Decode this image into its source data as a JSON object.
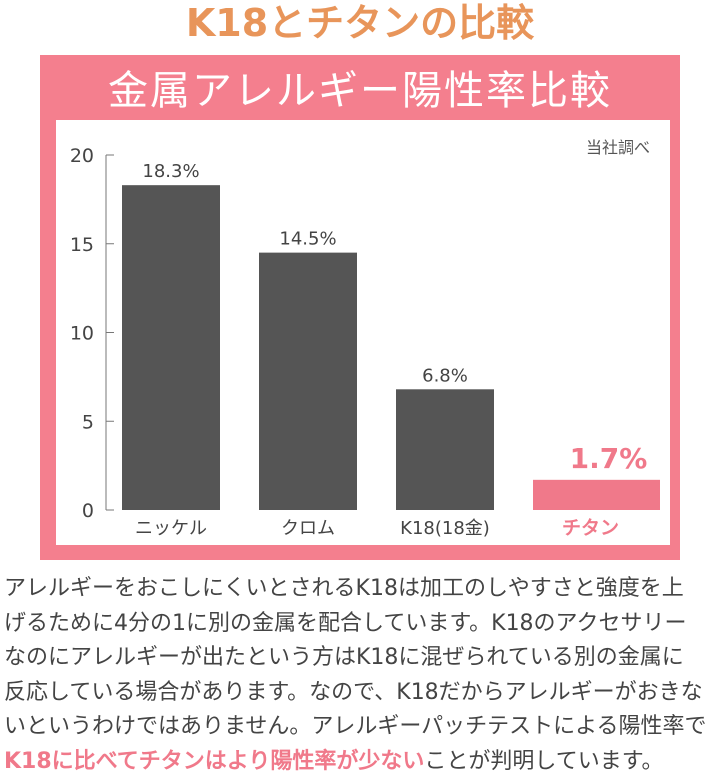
{
  "header": {
    "title": "K18とチタンの比較"
  },
  "panel": {
    "title": "金属アレルギー陽性率比較",
    "source_note": "当社調べ"
  },
  "colors": {
    "title": "#E8955A",
    "panel": "#F47F8E",
    "bar": "#555555",
    "highlight": "#F0798A"
  },
  "chart_data": {
    "type": "bar",
    "title": "金属アレルギー陽性率比較",
    "categories": [
      "ニッケル",
      "クロム",
      "K18(18金)",
      "チタン"
    ],
    "values": [
      18.3,
      14.5,
      6.8,
      1.7
    ],
    "data_labels": [
      "18.3%",
      "14.5%",
      "6.8%",
      "1.7%"
    ],
    "highlight_index": 3,
    "ylim": [
      0,
      20
    ],
    "yticks": [
      "0",
      "5",
      "10",
      "15",
      "20"
    ],
    "grid": false
  },
  "paragraph": {
    "lines": [
      "アレルギーをおこしにくいとされるK18は加工のしやすさと強度を上",
      "げるために4分の1に別の金属を配合しています。K18のアクセサリー",
      "なのにアレルギーが出たという方はK18に混ぜられている別の金属に",
      "反応している場合があります。なので、K18だからアレルギーがおきな",
      "いというわけではありません。アレルギーパッチテストによる陽性率で"
    ],
    "highlight": "K18に比べてチタンはより陽性率が少ない",
    "tail": "ことが判明しています。"
  }
}
